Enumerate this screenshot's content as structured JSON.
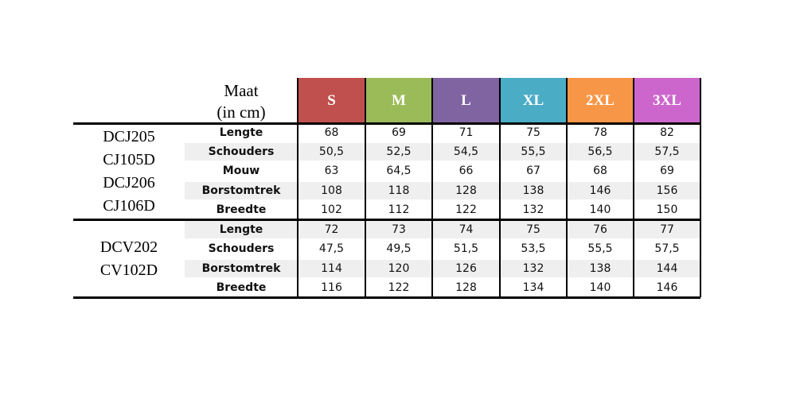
{
  "header": {
    "title": "Maat",
    "subtitle": "(in cm)",
    "sizes": [
      {
        "label": "S",
        "color": "#c0504d"
      },
      {
        "label": "M",
        "color": "#9bbb59"
      },
      {
        "label": "L",
        "color": "#8064a2"
      },
      {
        "label": "XL",
        "color": "#4bacc6"
      },
      {
        "label": "2XL",
        "color": "#f79646"
      },
      {
        "label": "3XL",
        "color": "#cc66cc"
      }
    ]
  },
  "groups": [
    {
      "models": [
        "DCJ205",
        "CJ105D",
        "DCJ206",
        "CJ106D"
      ],
      "rows": [
        {
          "label": "Lengte",
          "values": [
            "68",
            "69",
            "71",
            "75",
            "78",
            "82"
          ]
        },
        {
          "label": "Schouders",
          "values": [
            "50,5",
            "52,5",
            "54,5",
            "55,5",
            "56,5",
            "57,5"
          ]
        },
        {
          "label": "Mouw",
          "values": [
            "63",
            "64,5",
            "66",
            "67",
            "68",
            "69"
          ]
        },
        {
          "label": "Borstomtrek",
          "values": [
            "108",
            "118",
            "128",
            "138",
            "146",
            "156"
          ]
        },
        {
          "label": "Breedte",
          "values": [
            "102",
            "112",
            "122",
            "132",
            "140",
            "150"
          ]
        }
      ]
    },
    {
      "models": [
        "DCV202",
        "CV102D"
      ],
      "rows": [
        {
          "label": "Lengte",
          "values": [
            "72",
            "73",
            "74",
            "75",
            "76",
            "77"
          ]
        },
        {
          "label": "Schouders",
          "values": [
            "47,5",
            "49,5",
            "51,5",
            "53,5",
            "55,5",
            "57,5"
          ]
        },
        {
          "label": "Borstomtrek",
          "values": [
            "114",
            "120",
            "126",
            "132",
            "138",
            "144"
          ]
        },
        {
          "label": "Breedte",
          "values": [
            "116",
            "122",
            "128",
            "134",
            "140",
            "146"
          ]
        }
      ]
    }
  ]
}
